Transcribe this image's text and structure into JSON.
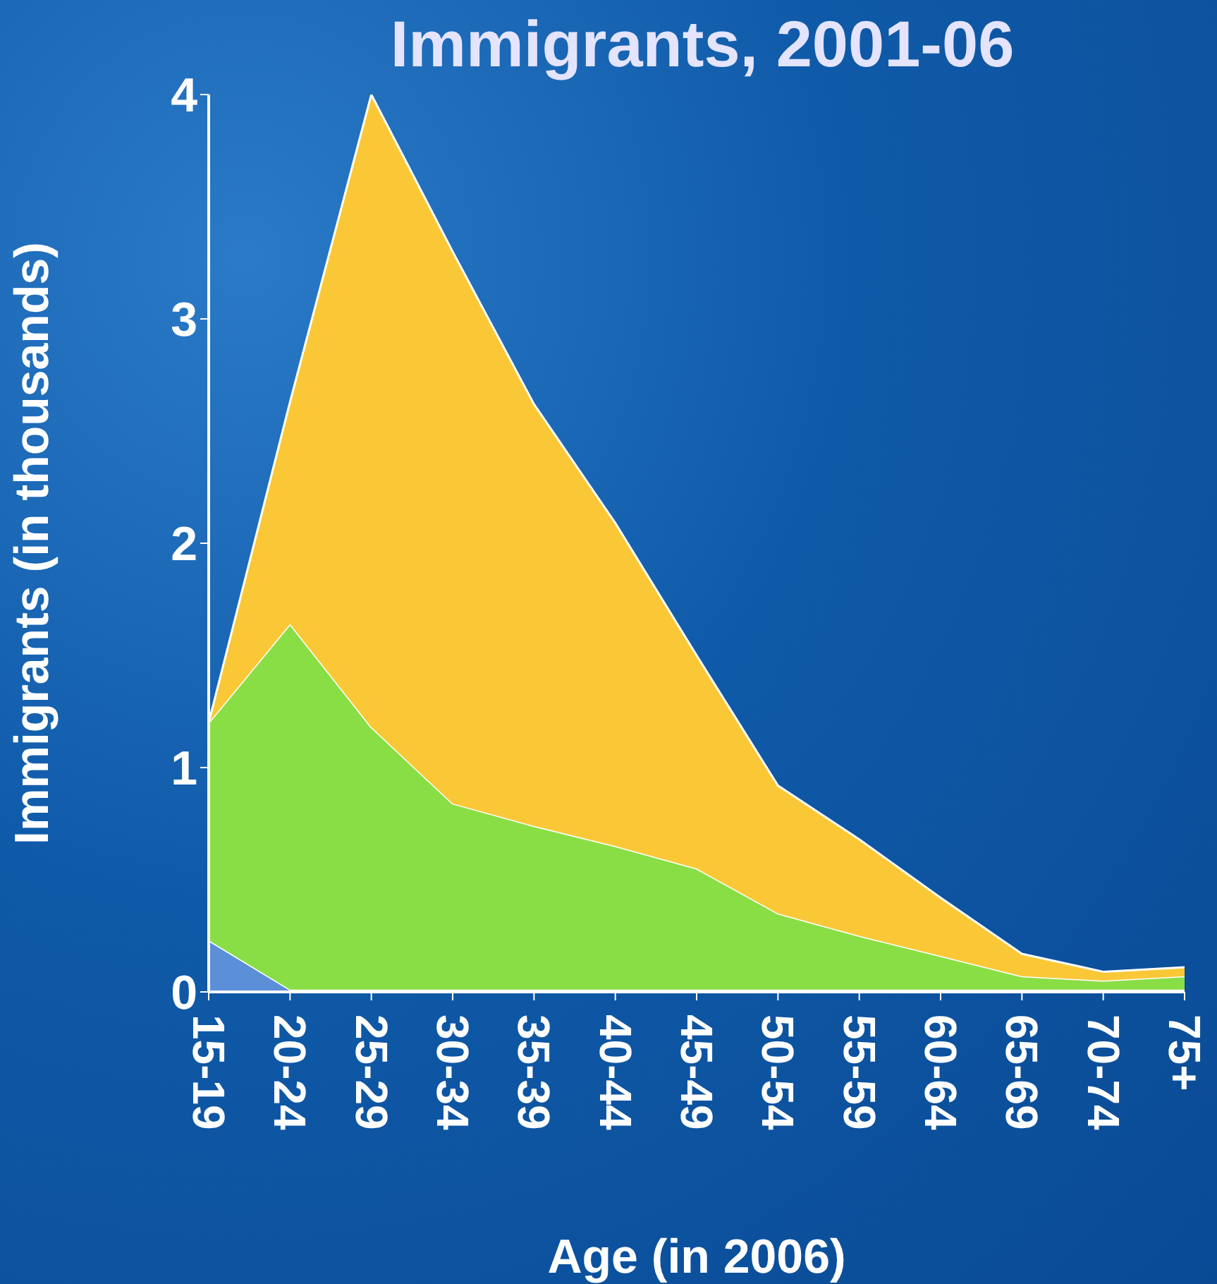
{
  "chart_data": {
    "type": "area",
    "title": "Immigrants, 2001-06",
    "xlabel": "Age (in 2006)",
    "ylabel": "Immigrants (in thousands)",
    "stacked": true,
    "categories": [
      "15-19",
      "20-24",
      "25-29",
      "30-34",
      "35-39",
      "40-44",
      "45-49",
      "50-54",
      "55-59",
      "60-64",
      "65-69",
      "70-74",
      "75+"
    ],
    "series": [
      {
        "color": "#5b8fd8",
        "values": [
          0.23,
          0.01,
          0.01,
          0.01,
          0.01,
          0.01,
          0.01,
          0.01,
          0.01,
          0.01,
          0.01,
          0.01,
          0.01
        ]
      },
      {
        "color": "#8ade45",
        "values": [
          0.97,
          1.63,
          1.17,
          0.83,
          0.73,
          0.64,
          0.54,
          0.34,
          0.24,
          0.15,
          0.06,
          0.04,
          0.06
        ]
      },
      {
        "color": "#fac837",
        "values": [
          0,
          0.99,
          2.82,
          2.46,
          1.88,
          1.44,
          0.95,
          0.57,
          0.43,
          0.26,
          0.1,
          0.04,
          0.04
        ]
      }
    ],
    "ylim": [
      0,
      4
    ],
    "yticks": [
      0,
      1,
      2,
      3,
      4
    ],
    "grid": false,
    "legend": false
  }
}
